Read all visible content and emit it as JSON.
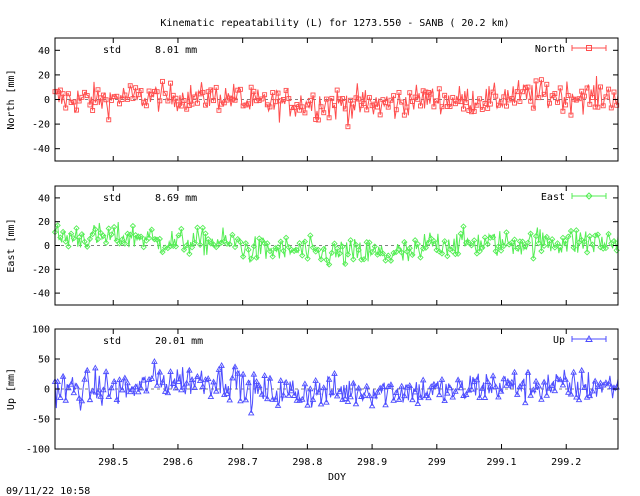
{
  "chart_data": {
    "type": "line",
    "title": "Kinematic repeatability (L) for 1273.550 - SANB  ( 20.2 km)",
    "xlabel": "DOY",
    "xlim": [
      298.41,
      299.28
    ],
    "x_ticks": [
      "298.5",
      "298.6",
      "298.7",
      "298.8",
      "298.9",
      "299",
      "299.1",
      "299.2"
    ],
    "footer": "09/11/22 10:58",
    "grid": false,
    "legend_position": "top-right",
    "panels": [
      {
        "name": "North",
        "ylabel": "North [mm]",
        "ylim": [
          -50,
          50
        ],
        "y_ticks": [
          "40",
          "20",
          "0",
          "-20",
          "-40"
        ],
        "std_label": "std",
        "std_value": "8.01 mm",
        "color": "#ff4d4d",
        "marker": "square",
        "segments": [
          {
            "x0": 298.41,
            "x1": 298.5,
            "base": 0,
            "amp": 9
          },
          {
            "x0": 298.5,
            "x1": 298.7,
            "base": 2,
            "amp": 8
          },
          {
            "x0": 298.7,
            "x1": 298.83,
            "base": -3,
            "amp": 9
          },
          {
            "x0": 298.83,
            "x1": 298.95,
            "base": -4,
            "amp": 10
          },
          {
            "x0": 298.95,
            "x1": 299.1,
            "base": 0,
            "amp": 8
          },
          {
            "x0": 299.1,
            "x1": 299.28,
            "base": 3,
            "amp": 9
          }
        ]
      },
      {
        "name": "East",
        "ylabel": "East [mm]",
        "ylim": [
          -50,
          50
        ],
        "y_ticks": [
          "40",
          "20",
          "0",
          "-20",
          "-40"
        ],
        "std_label": "std",
        "std_value": "8.69 mm",
        "color": "#55ee55",
        "marker": "diamond",
        "segments": [
          {
            "x0": 298.41,
            "x1": 298.56,
            "base": 7,
            "amp": 8
          },
          {
            "x0": 298.56,
            "x1": 298.7,
            "base": 3,
            "amp": 8
          },
          {
            "x0": 298.7,
            "x1": 298.8,
            "base": -4,
            "amp": 8
          },
          {
            "x0": 298.8,
            "x1": 298.98,
            "base": -7,
            "amp": 9
          },
          {
            "x0": 298.98,
            "x1": 299.15,
            "base": 2,
            "amp": 8
          },
          {
            "x0": 299.15,
            "x1": 299.28,
            "base": 3,
            "amp": 9
          }
        ]
      },
      {
        "name": "Up",
        "ylabel": "Up [mm]",
        "ylim": [
          -100,
          100
        ],
        "y_ticks": [
          "100",
          "50",
          "0",
          "-50",
          "-100"
        ],
        "std_label": "std",
        "std_value": "20.01 mm",
        "color": "#4d4dff",
        "marker": "triangle",
        "segments": [
          {
            "x0": 298.41,
            "x1": 298.55,
            "base": 0,
            "amp": 22
          },
          {
            "x0": 298.55,
            "x1": 298.7,
            "base": 15,
            "amp": 20
          },
          {
            "x0": 298.7,
            "x1": 298.85,
            "base": -5,
            "amp": 20
          },
          {
            "x0": 298.85,
            "x1": 299.05,
            "base": -3,
            "amp": 18
          },
          {
            "x0": 299.05,
            "x1": 299.28,
            "base": 5,
            "amp": 20
          }
        ]
      }
    ]
  }
}
